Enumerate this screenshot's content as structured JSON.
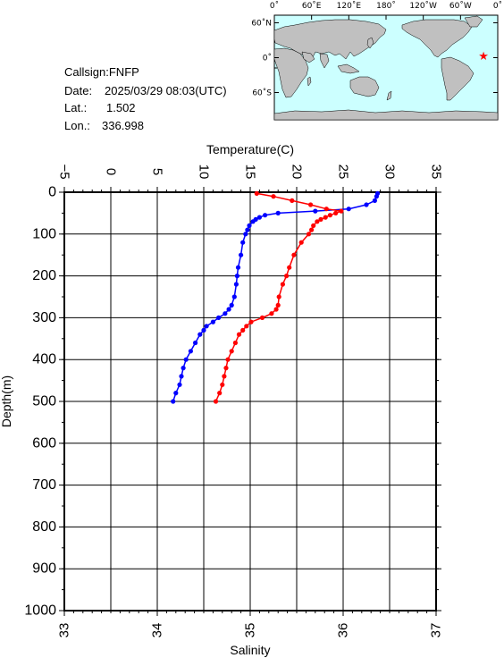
{
  "info": {
    "callsign_label": "Callsign:",
    "callsign": "FNFP",
    "date_label": "Date:",
    "date": "2025/03/29 08:03(UTC)",
    "lat_label": "Lat.:",
    "lat": "1.502",
    "lon_label": "Lon.:",
    "lon": "336.998"
  },
  "map": {
    "top_ticks": [
      "0˚",
      "60˚E",
      "120˚E",
      "180˚",
      "120˚W",
      "60˚W",
      "0˚"
    ],
    "left_ticks": [
      "60˚N",
      "0˚",
      "60˚S"
    ],
    "ocean_color": "#ccffff",
    "land_color": "#c0c0c0",
    "marker_color": "#ff0000",
    "marker": {
      "lon": 336.998,
      "lat": 1.502
    }
  },
  "chart_data": {
    "type": "line",
    "top_axis": {
      "label": "Temperature(C)",
      "min": -5,
      "max": 35,
      "ticks": [
        -5,
        0,
        5,
        10,
        15,
        20,
        25,
        30,
        35
      ]
    },
    "bottom_axis": {
      "label": "Salinity",
      "min": 33,
      "max": 37,
      "ticks": [
        33,
        34,
        35,
        36,
        37
      ]
    },
    "y_axis": {
      "label": "Depth(m)",
      "min": 0,
      "max": 1000,
      "ticks": [
        0,
        100,
        200,
        300,
        400,
        500,
        600,
        700,
        800,
        900,
        1000
      ],
      "inverted": true
    },
    "grid": true,
    "series": [
      {
        "quantity": "temperature",
        "color": "#0000ff",
        "depth": [
          3,
          10,
          20,
          30,
          40,
          45,
          50,
          55,
          60,
          65,
          70,
          80,
          90,
          100,
          120,
          150,
          180,
          200,
          220,
          250,
          270,
          280,
          290,
          300,
          310,
          320,
          330,
          340,
          360,
          380,
          400,
          420,
          440,
          460,
          480,
          500
        ],
        "values": [
          28.7,
          28.6,
          28.4,
          27.5,
          25.6,
          22.0,
          18.0,
          16.6,
          16.0,
          15.6,
          15.3,
          14.9,
          14.7,
          14.5,
          14.2,
          14.0,
          13.7,
          13.6,
          13.5,
          13.3,
          13.0,
          12.7,
          12.3,
          11.6,
          11.0,
          10.3,
          10.0,
          9.6,
          9.1,
          8.6,
          8.1,
          7.8,
          7.6,
          7.4,
          7.0,
          6.7
        ]
      },
      {
        "quantity": "salinity",
        "color": "#ff0000",
        "depth": [
          3,
          10,
          20,
          30,
          40,
          45,
          50,
          55,
          60,
          65,
          70,
          80,
          90,
          100,
          120,
          150,
          180,
          200,
          220,
          250,
          270,
          280,
          290,
          300,
          310,
          320,
          330,
          340,
          360,
          380,
          400,
          420,
          440,
          460,
          480,
          500
        ],
        "values": [
          35.07,
          35.25,
          35.45,
          35.65,
          35.82,
          35.98,
          35.92,
          35.86,
          35.81,
          35.76,
          35.72,
          35.68,
          35.66,
          35.63,
          35.55,
          35.47,
          35.42,
          35.39,
          35.35,
          35.31,
          35.3,
          35.28,
          35.23,
          35.13,
          35.01,
          34.96,
          34.92,
          34.88,
          34.84,
          34.8,
          34.76,
          34.74,
          34.72,
          34.7,
          34.67,
          34.63
        ]
      }
    ]
  }
}
